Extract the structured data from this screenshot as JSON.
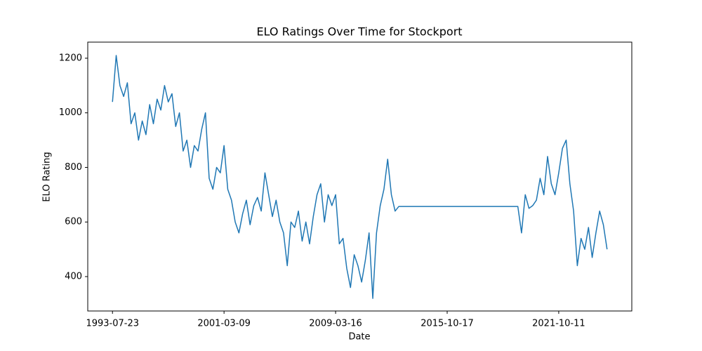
{
  "chart_data": {
    "type": "line",
    "title": "ELO Ratings Over Time for Stockport",
    "x_label": "Date",
    "y_label": "ELO Rating",
    "categories": [
      "1993-07-23",
      null,
      null,
      null,
      null,
      null,
      null,
      null,
      null,
      null,
      null,
      null,
      null,
      null,
      null,
      null,
      null,
      null,
      null,
      null,
      null,
      null,
      null,
      null,
      null,
      null,
      null,
      null,
      null,
      null,
      "2001-03-09",
      null,
      null,
      null,
      null,
      null,
      null,
      null,
      null,
      null,
      null,
      null,
      null,
      null,
      null,
      null,
      null,
      null,
      null,
      null,
      null,
      null,
      null,
      null,
      null,
      null,
      null,
      null,
      null,
      null,
      "2009-03-16",
      null,
      null,
      null,
      null,
      null,
      null,
      null,
      null,
      null,
      null,
      null,
      null,
      null,
      null,
      null,
      null,
      null,
      null,
      null,
      null,
      null,
      null,
      null,
      null,
      null,
      null,
      null,
      null,
      null,
      "2015-10-17",
      null,
      null,
      null,
      null,
      null,
      null,
      null,
      null,
      null,
      null,
      null,
      null,
      null,
      null,
      null,
      null,
      null,
      null,
      null,
      null,
      null,
      null,
      null,
      null,
      null,
      null,
      null,
      null,
      null,
      "2021-10-11",
      null,
      null,
      null,
      null,
      null,
      null,
      null,
      null,
      null,
      null,
      null,
      null,
      null
    ],
    "values": [
      1040,
      1210,
      1100,
      1060,
      1110,
      960,
      1000,
      900,
      970,
      920,
      1030,
      960,
      1050,
      1010,
      1100,
      1040,
      1070,
      950,
      1000,
      860,
      900,
      800,
      880,
      860,
      940,
      1000,
      760,
      720,
      800,
      780,
      880,
      720,
      680,
      600,
      560,
      630,
      680,
      590,
      660,
      690,
      640,
      780,
      700,
      620,
      680,
      600,
      560,
      440,
      600,
      580,
      640,
      530,
      600,
      520,
      620,
      700,
      740,
      600,
      700,
      660,
      700,
      520,
      540,
      430,
      360,
      480,
      440,
      380,
      460,
      560,
      320,
      560,
      660,
      720,
      830,
      700,
      640,
      657,
      657,
      657,
      657,
      657,
      657,
      657,
      657,
      657,
      657,
      657,
      657,
      657,
      657,
      657,
      657,
      657,
      657,
      657,
      657,
      657,
      657,
      657,
      657,
      657,
      657,
      657,
      657,
      657,
      657,
      657,
      657,
      657,
      560,
      700,
      650,
      660,
      680,
      760,
      700,
      840,
      740,
      700,
      780,
      870,
      900,
      740,
      640,
      440,
      540,
      500,
      580,
      470,
      560,
      640,
      590,
      500
    ],
    "color": "#1f77b4",
    "ylim": [
      274,
      1259
    ],
    "yticks": [
      400,
      600,
      800,
      1000,
      1200
    ],
    "grid": false
  }
}
